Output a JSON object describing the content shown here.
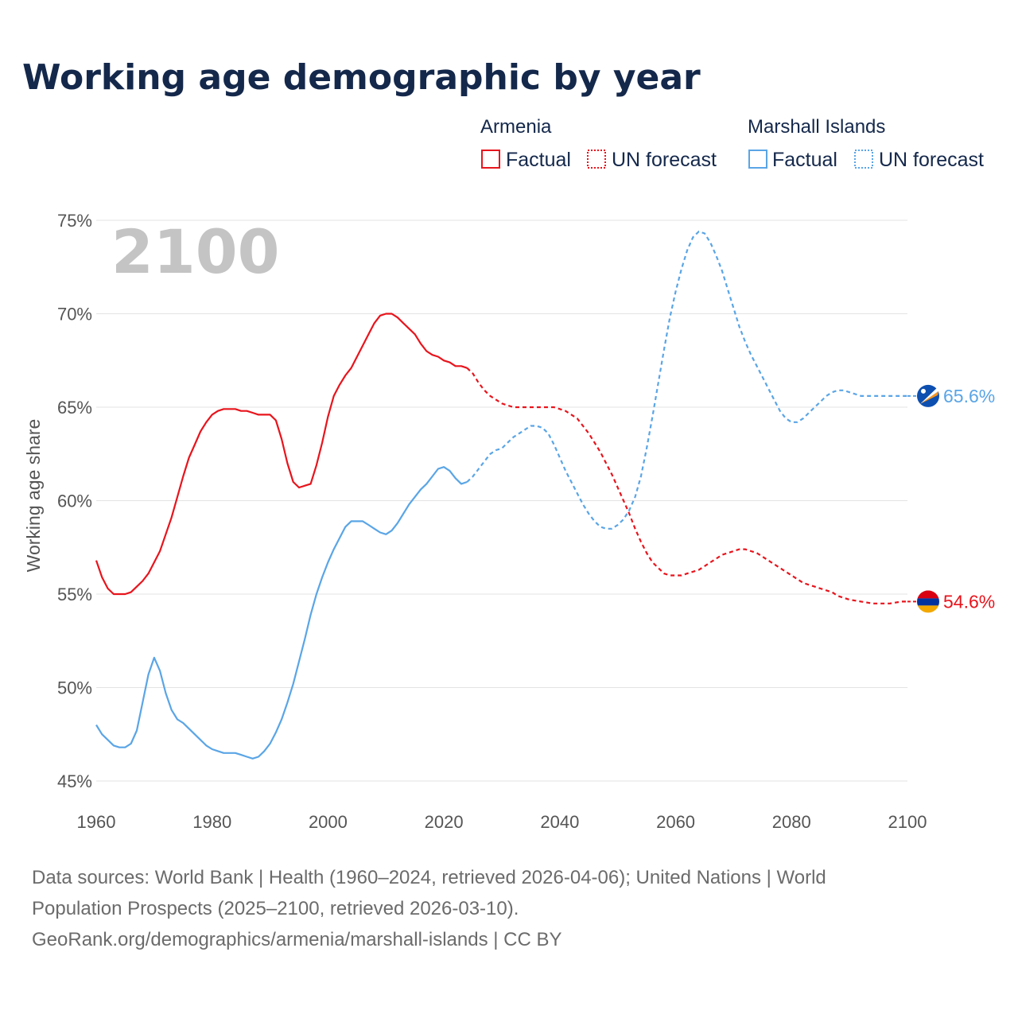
{
  "title": "Working age demographic by year",
  "year_watermark": "2100",
  "legend": {
    "groups": [
      {
        "name": "Armenia",
        "color": "#e8141c",
        "items": [
          {
            "label": "Factual",
            "style": "solid"
          },
          {
            "label": "UN forecast",
            "style": "dotted"
          }
        ]
      },
      {
        "name": "Marshall Islands",
        "color": "#5aa5e6",
        "items": [
          {
            "label": "Factual",
            "style": "solid"
          },
          {
            "label": "UN forecast",
            "style": "dotted"
          }
        ]
      }
    ]
  },
  "end_labels": {
    "armenia": "54.6%",
    "marshall": "65.6%"
  },
  "footer": {
    "line1": "Data sources: World Bank | Health (1960–2024, retrieved 2026-04-06); United Nations | World",
    "line2": "Population Prospects (2025–2100, retrieved 2026-03-10).",
    "line3": "GeoRank.org/demographics/armenia/marshall-islands | CC BY"
  },
  "chart_data": {
    "type": "line",
    "title": "Working age demographic by year",
    "xlabel": "",
    "ylabel": "Working age share",
    "xlim": [
      1960,
      2100
    ],
    "ylim": [
      45,
      75
    ],
    "xticks": [
      1960,
      1980,
      2000,
      2020,
      2040,
      2060,
      2080,
      2100
    ],
    "yticks": [
      45,
      50,
      55,
      60,
      65,
      70,
      75
    ],
    "ytick_labels": [
      "45%",
      "50%",
      "55%",
      "60%",
      "65%",
      "70%",
      "75%"
    ],
    "xtick_labels": [
      "1960",
      "1980",
      "2000",
      "2020",
      "2040",
      "2060",
      "2080",
      "2100"
    ],
    "grid": true,
    "forecast_start": 2024,
    "series": [
      {
        "name": "Armenia",
        "color": "#e8141c",
        "points": [
          [
            1960,
            56.8
          ],
          [
            1961,
            55.9
          ],
          [
            1962,
            55.3
          ],
          [
            1963,
            55.0
          ],
          [
            1964,
            55.0
          ],
          [
            1965,
            55.0
          ],
          [
            1966,
            55.1
          ],
          [
            1967,
            55.4
          ],
          [
            1968,
            55.7
          ],
          [
            1969,
            56.1
          ],
          [
            1970,
            56.7
          ],
          [
            1971,
            57.3
          ],
          [
            1972,
            58.2
          ],
          [
            1973,
            59.1
          ],
          [
            1974,
            60.2
          ],
          [
            1975,
            61.3
          ],
          [
            1976,
            62.3
          ],
          [
            1977,
            63.0
          ],
          [
            1978,
            63.7
          ],
          [
            1979,
            64.2
          ],
          [
            1980,
            64.6
          ],
          [
            1981,
            64.8
          ],
          [
            1982,
            64.9
          ],
          [
            1983,
            64.9
          ],
          [
            1984,
            64.9
          ],
          [
            1985,
            64.8
          ],
          [
            1986,
            64.8
          ],
          [
            1987,
            64.7
          ],
          [
            1988,
            64.6
          ],
          [
            1989,
            64.6
          ],
          [
            1990,
            64.6
          ],
          [
            1991,
            64.3
          ],
          [
            1992,
            63.3
          ],
          [
            1993,
            62.0
          ],
          [
            1994,
            61.0
          ],
          [
            1995,
            60.7
          ],
          [
            1996,
            60.8
          ],
          [
            1997,
            60.9
          ],
          [
            1998,
            61.9
          ],
          [
            1999,
            63.1
          ],
          [
            2000,
            64.5
          ],
          [
            2001,
            65.6
          ],
          [
            2002,
            66.2
          ],
          [
            2003,
            66.7
          ],
          [
            2004,
            67.1
          ],
          [
            2005,
            67.7
          ],
          [
            2006,
            68.3
          ],
          [
            2007,
            68.9
          ],
          [
            2008,
            69.5
          ],
          [
            2009,
            69.9
          ],
          [
            2010,
            70.0
          ],
          [
            2011,
            70.0
          ],
          [
            2012,
            69.8
          ],
          [
            2013,
            69.5
          ],
          [
            2014,
            69.2
          ],
          [
            2015,
            68.9
          ],
          [
            2016,
            68.4
          ],
          [
            2017,
            68.0
          ],
          [
            2018,
            67.8
          ],
          [
            2019,
            67.7
          ],
          [
            2020,
            67.5
          ],
          [
            2021,
            67.4
          ],
          [
            2022,
            67.2
          ],
          [
            2023,
            67.2
          ],
          [
            2024,
            67.1
          ],
          [
            2025,
            66.8
          ],
          [
            2026,
            66.3
          ],
          [
            2027,
            65.9
          ],
          [
            2028,
            65.6
          ],
          [
            2029,
            65.4
          ],
          [
            2030,
            65.2
          ],
          [
            2031,
            65.1
          ],
          [
            2032,
            65.0
          ],
          [
            2033,
            65.0
          ],
          [
            2034,
            65.0
          ],
          [
            2035,
            65.0
          ],
          [
            2036,
            65.0
          ],
          [
            2037,
            65.0
          ],
          [
            2038,
            65.0
          ],
          [
            2039,
            65.0
          ],
          [
            2040,
            64.9
          ],
          [
            2041,
            64.8
          ],
          [
            2042,
            64.6
          ],
          [
            2043,
            64.4
          ],
          [
            2044,
            64.0
          ],
          [
            2045,
            63.6
          ],
          [
            2046,
            63.1
          ],
          [
            2047,
            62.6
          ],
          [
            2048,
            62.0
          ],
          [
            2049,
            61.4
          ],
          [
            2050,
            60.7
          ],
          [
            2051,
            60.0
          ],
          [
            2052,
            59.3
          ],
          [
            2053,
            58.5
          ],
          [
            2054,
            57.8
          ],
          [
            2055,
            57.2
          ],
          [
            2056,
            56.7
          ],
          [
            2057,
            56.4
          ],
          [
            2058,
            56.1
          ],
          [
            2059,
            56.0
          ],
          [
            2060,
            56.0
          ],
          [
            2061,
            56.0
          ],
          [
            2062,
            56.1
          ],
          [
            2063,
            56.2
          ],
          [
            2064,
            56.3
          ],
          [
            2065,
            56.5
          ],
          [
            2066,
            56.7
          ],
          [
            2067,
            56.9
          ],
          [
            2068,
            57.1
          ],
          [
            2069,
            57.2
          ],
          [
            2070,
            57.3
          ],
          [
            2071,
            57.4
          ],
          [
            2072,
            57.4
          ],
          [
            2073,
            57.3
          ],
          [
            2074,
            57.2
          ],
          [
            2075,
            57.0
          ],
          [
            2076,
            56.8
          ],
          [
            2077,
            56.6
          ],
          [
            2078,
            56.4
          ],
          [
            2079,
            56.2
          ],
          [
            2080,
            56.0
          ],
          [
            2081,
            55.8
          ],
          [
            2082,
            55.6
          ],
          [
            2083,
            55.5
          ],
          [
            2084,
            55.4
          ],
          [
            2085,
            55.3
          ],
          [
            2086,
            55.2
          ],
          [
            2087,
            55.1
          ],
          [
            2088,
            54.9
          ],
          [
            2089,
            54.8
          ],
          [
            2090,
            54.7
          ],
          [
            2091,
            54.65
          ],
          [
            2092,
            54.6
          ],
          [
            2093,
            54.55
          ],
          [
            2094,
            54.5
          ],
          [
            2095,
            54.5
          ],
          [
            2096,
            54.5
          ],
          [
            2097,
            54.5
          ],
          [
            2098,
            54.55
          ],
          [
            2099,
            54.6
          ],
          [
            2100,
            54.6
          ]
        ]
      },
      {
        "name": "Marshall Islands",
        "color": "#5aa5e6",
        "points": [
          [
            1960,
            48.0
          ],
          [
            1961,
            47.5
          ],
          [
            1962,
            47.2
          ],
          [
            1963,
            46.9
          ],
          [
            1964,
            46.8
          ],
          [
            1965,
            46.8
          ],
          [
            1966,
            47.0
          ],
          [
            1967,
            47.7
          ],
          [
            1968,
            49.2
          ],
          [
            1969,
            50.7
          ],
          [
            1970,
            51.6
          ],
          [
            1971,
            50.9
          ],
          [
            1972,
            49.7
          ],
          [
            1973,
            48.8
          ],
          [
            1974,
            48.3
          ],
          [
            1975,
            48.1
          ],
          [
            1976,
            47.8
          ],
          [
            1977,
            47.5
          ],
          [
            1978,
            47.2
          ],
          [
            1979,
            46.9
          ],
          [
            1980,
            46.7
          ],
          [
            1981,
            46.6
          ],
          [
            1982,
            46.5
          ],
          [
            1983,
            46.5
          ],
          [
            1984,
            46.5
          ],
          [
            1985,
            46.4
          ],
          [
            1986,
            46.3
          ],
          [
            1987,
            46.2
          ],
          [
            1988,
            46.3
          ],
          [
            1989,
            46.6
          ],
          [
            1990,
            47.0
          ],
          [
            1991,
            47.6
          ],
          [
            1992,
            48.3
          ],
          [
            1993,
            49.2
          ],
          [
            1994,
            50.2
          ],
          [
            1995,
            51.4
          ],
          [
            1996,
            52.6
          ],
          [
            1997,
            53.9
          ],
          [
            1998,
            55.0
          ],
          [
            1999,
            55.9
          ],
          [
            2000,
            56.7
          ],
          [
            2001,
            57.4
          ],
          [
            2002,
            58.0
          ],
          [
            2003,
            58.6
          ],
          [
            2004,
            58.9
          ],
          [
            2005,
            58.9
          ],
          [
            2006,
            58.9
          ],
          [
            2007,
            58.7
          ],
          [
            2008,
            58.5
          ],
          [
            2009,
            58.3
          ],
          [
            2010,
            58.2
          ],
          [
            2011,
            58.4
          ],
          [
            2012,
            58.8
          ],
          [
            2013,
            59.3
          ],
          [
            2014,
            59.8
          ],
          [
            2015,
            60.2
          ],
          [
            2016,
            60.6
          ],
          [
            2017,
            60.9
          ],
          [
            2018,
            61.3
          ],
          [
            2019,
            61.7
          ],
          [
            2020,
            61.8
          ],
          [
            2021,
            61.6
          ],
          [
            2022,
            61.2
          ],
          [
            2023,
            60.9
          ],
          [
            2024,
            61.0
          ],
          [
            2025,
            61.3
          ],
          [
            2026,
            61.7
          ],
          [
            2027,
            62.1
          ],
          [
            2028,
            62.5
          ],
          [
            2029,
            62.7
          ],
          [
            2030,
            62.8
          ],
          [
            2031,
            63.1
          ],
          [
            2032,
            63.4
          ],
          [
            2033,
            63.6
          ],
          [
            2034,
            63.8
          ],
          [
            2035,
            64.0
          ],
          [
            2036,
            64.0
          ],
          [
            2037,
            63.9
          ],
          [
            2038,
            63.6
          ],
          [
            2039,
            63.0
          ],
          [
            2040,
            62.3
          ],
          [
            2041,
            61.6
          ],
          [
            2042,
            61.0
          ],
          [
            2043,
            60.4
          ],
          [
            2044,
            59.8
          ],
          [
            2045,
            59.3
          ],
          [
            2046,
            58.9
          ],
          [
            2047,
            58.6
          ],
          [
            2048,
            58.5
          ],
          [
            2049,
            58.5
          ],
          [
            2050,
            58.7
          ],
          [
            2051,
            59.0
          ],
          [
            2052,
            59.5
          ],
          [
            2053,
            60.2
          ],
          [
            2054,
            61.3
          ],
          [
            2055,
            62.8
          ],
          [
            2056,
            64.5
          ],
          [
            2057,
            66.3
          ],
          [
            2058,
            68.1
          ],
          [
            2059,
            69.8
          ],
          [
            2060,
            71.2
          ],
          [
            2061,
            72.4
          ],
          [
            2062,
            73.4
          ],
          [
            2063,
            74.1
          ],
          [
            2064,
            74.4
          ],
          [
            2065,
            74.3
          ],
          [
            2066,
            73.8
          ],
          [
            2067,
            73.1
          ],
          [
            2068,
            72.3
          ],
          [
            2069,
            71.3
          ],
          [
            2070,
            70.3
          ],
          [
            2071,
            69.3
          ],
          [
            2072,
            68.5
          ],
          [
            2073,
            67.8
          ],
          [
            2074,
            67.2
          ],
          [
            2075,
            66.6
          ],
          [
            2076,
            66.0
          ],
          [
            2077,
            65.4
          ],
          [
            2078,
            64.8
          ],
          [
            2079,
            64.4
          ],
          [
            2080,
            64.2
          ],
          [
            2081,
            64.2
          ],
          [
            2082,
            64.4
          ],
          [
            2083,
            64.7
          ],
          [
            2084,
            65.0
          ],
          [
            2085,
            65.3
          ],
          [
            2086,
            65.6
          ],
          [
            2087,
            65.8
          ],
          [
            2088,
            65.9
          ],
          [
            2089,
            65.9
          ],
          [
            2090,
            65.8
          ],
          [
            2091,
            65.7
          ],
          [
            2092,
            65.6
          ],
          [
            2093,
            65.6
          ],
          [
            2094,
            65.6
          ],
          [
            2095,
            65.6
          ],
          [
            2096,
            65.6
          ],
          [
            2097,
            65.6
          ],
          [
            2098,
            65.6
          ],
          [
            2099,
            65.6
          ],
          [
            2100,
            65.6
          ]
        ]
      }
    ]
  }
}
